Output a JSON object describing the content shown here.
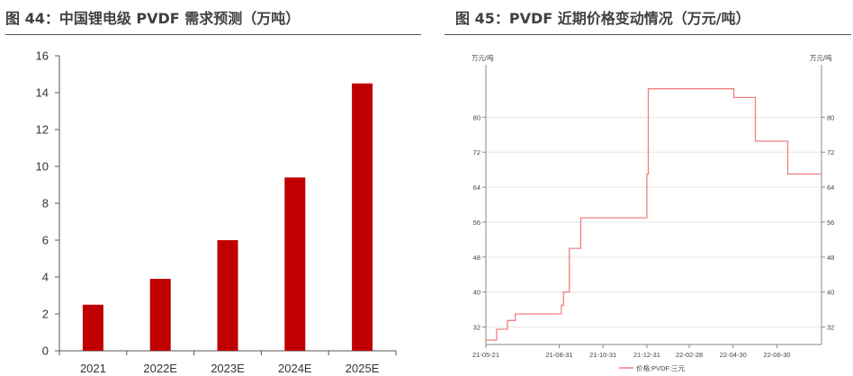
{
  "titles": {
    "left": "图 44：中国锂电级 PVDF 需求预测（万吨）",
    "right": "图 45：PVDF 近期价格变动情况（万元/吨）"
  },
  "chart_data": [
    {
      "type": "bar",
      "title": "图 44：中国锂电级 PVDF 需求预测（万吨）",
      "categories": [
        "2021",
        "2022E",
        "2023E",
        "2024E",
        "2025E"
      ],
      "values": [
        2.5,
        3.9,
        6.0,
        9.4,
        14.5
      ],
      "ylim": [
        0,
        16
      ],
      "yticks": [
        0,
        2,
        4,
        6,
        8,
        10,
        12,
        14,
        16
      ],
      "color": "#c00000",
      "grid": false
    },
    {
      "type": "line",
      "title": "图 45：PVDF 近期价格变动情况（万元/吨）",
      "y_unit_left": "万元/吨",
      "y_unit_right": "万元/吨",
      "ylim": [
        28,
        92
      ],
      "yticks": [
        32,
        40,
        48,
        56,
        64,
        72,
        80
      ],
      "xticks": [
        "21-05-21",
        "21-08-31",
        "21-10-31",
        "21-12-31",
        "22-02-28",
        "22-04-30",
        "22-06-30"
      ],
      "color": "#f08080",
      "grid": true,
      "series": [
        {
          "name": "价格:PVDF:三元",
          "x": [
            "2021-05-21",
            "2021-06-05",
            "2021-06-20",
            "2021-07-01",
            "2021-07-15",
            "2021-08-31",
            "2021-09-03",
            "2021-09-06",
            "2021-09-14",
            "2021-09-23",
            "2021-09-30",
            "2021-12-31",
            "2022-01-02",
            "2022-04-15",
            "2022-05-01",
            "2022-05-31",
            "2022-06-02",
            "2022-07-15",
            "2022-08-31"
          ],
          "values": [
            29,
            31.5,
            33.5,
            35,
            35,
            35,
            37,
            40,
            50,
            50,
            57,
            67,
            86.5,
            86.5,
            84.5,
            74.5,
            74.5,
            67,
            67
          ]
        }
      ]
    }
  ]
}
